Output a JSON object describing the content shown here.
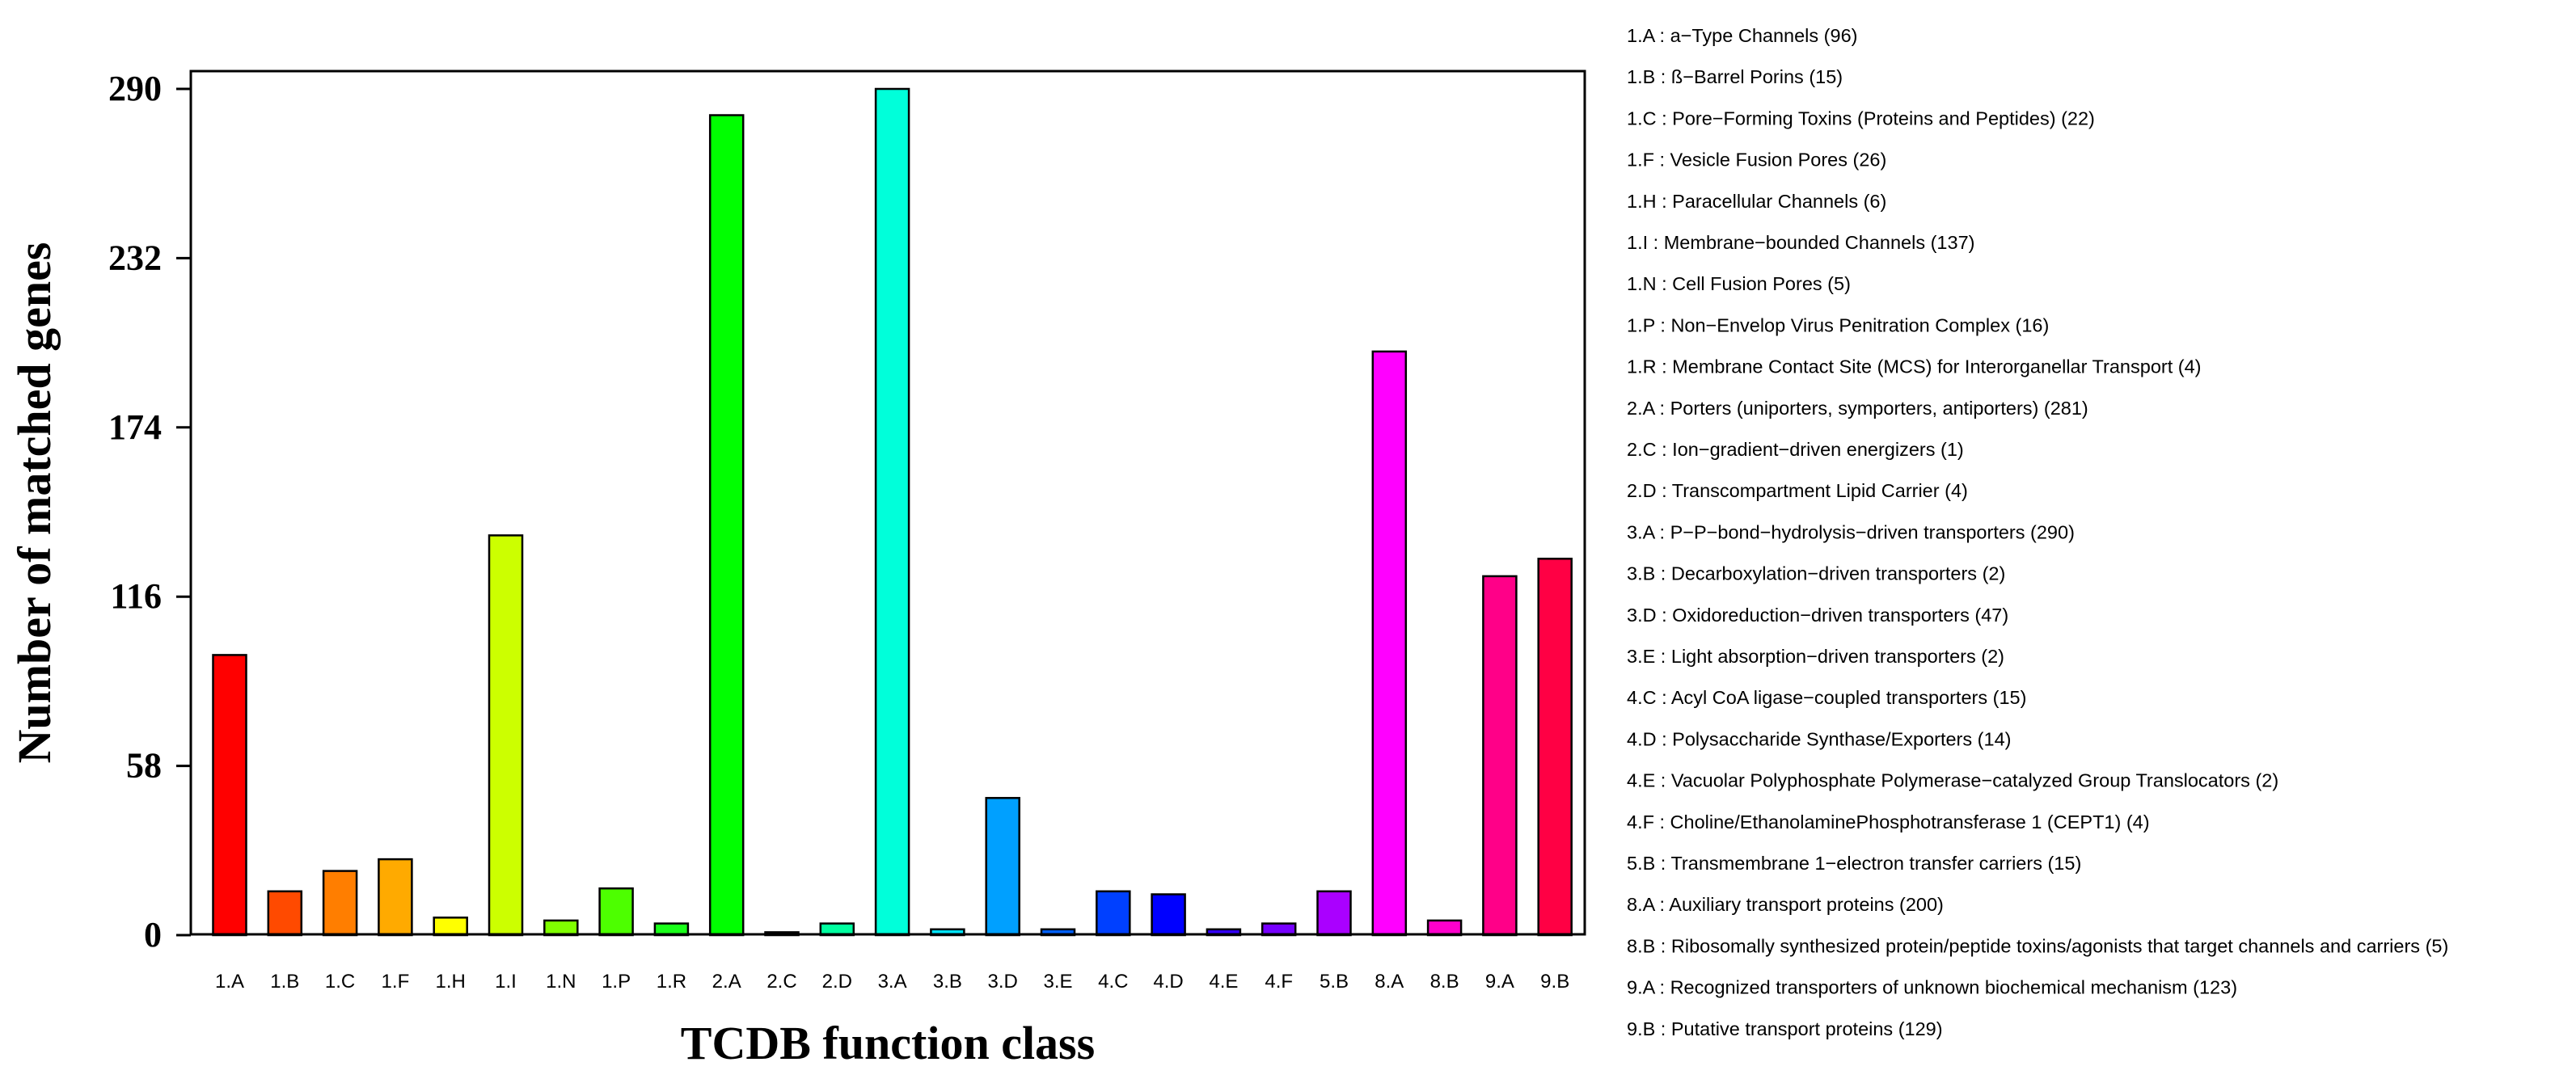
{
  "chart_data": {
    "type": "bar",
    "title": "",
    "xlabel": "TCDB function class",
    "ylabel": "Number of matched genes",
    "ylim": [
      0,
      296
    ],
    "yticks": [
      0,
      58,
      116,
      174,
      232,
      290
    ],
    "grid": false,
    "legend_position": "right",
    "categories": [
      "1.A",
      "1.B",
      "1.C",
      "1.F",
      "1.H",
      "1.I",
      "1.N",
      "1.P",
      "1.R",
      "2.A",
      "2.C",
      "2.D",
      "3.A",
      "3.B",
      "3.D",
      "3.E",
      "4.C",
      "4.D",
      "4.E",
      "4.F",
      "5.B",
      "8.A",
      "8.B",
      "9.A",
      "9.B"
    ],
    "values": [
      96,
      15,
      22,
      26,
      6,
      137,
      5,
      16,
      4,
      281,
      1,
      4,
      290,
      2,
      47,
      2,
      15,
      14,
      2,
      4,
      15,
      200,
      5,
      123,
      129
    ],
    "colors": [
      "#FF0000",
      "#FF4A00",
      "#FF7E00",
      "#FFAA00",
      "#FFFF00",
      "#CCFF00",
      "#80FF00",
      "#4DFF00",
      "#1AFF1A",
      "#00FF00",
      "#00FF80",
      "#00FFA0",
      "#00FFDA",
      "#00E6FF",
      "#00A0FF",
      "#0060FF",
      "#0040FF",
      "#0000FF",
      "#3300FF",
      "#7700FF",
      "#AA00FF",
      "#FF00FF",
      "#FF00CC",
      "#FF0088",
      "#FF0044"
    ],
    "legend": [
      {
        "code": "1.A :",
        "name": "a−Type Channels",
        "count": "(96)"
      },
      {
        "code": "1.B :",
        "name": "ß−Barrel Porins",
        "count": "(15)"
      },
      {
        "code": "1.C :",
        "name": "Pore−Forming Toxins (Proteins and Peptides)",
        "count": "(22)"
      },
      {
        "code": "1.F :",
        "name": "Vesicle Fusion Pores",
        "count": "(26)"
      },
      {
        "code": "1.H :",
        "name": "Paracellular Channels",
        "count": "(6)"
      },
      {
        "code": "1.I :",
        "name": "Membrane−bounded Channels",
        "count": "(137)"
      },
      {
        "code": "1.N :",
        "name": "Cell Fusion Pores",
        "count": "(5)"
      },
      {
        "code": "1.P :",
        "name": "Non−Envelop Virus Penitration Complex",
        "count": "(16)"
      },
      {
        "code": "1.R :",
        "name": "Membrane Contact Site (MCS) for Interorganellar Transport",
        "count": "(4)"
      },
      {
        "code": "2.A :",
        "name": "Porters (uniporters, symporters, antiporters)",
        "count": "(281)"
      },
      {
        "code": "2.C :",
        "name": "Ion−gradient−driven energizers",
        "count": "(1)"
      },
      {
        "code": "2.D :",
        "name": "Transcompartment Lipid Carrier",
        "count": "(4)"
      },
      {
        "code": "3.A :",
        "name": "P−P−bond−hydrolysis−driven transporters",
        "count": "(290)"
      },
      {
        "code": "3.B :",
        "name": "Decarboxylation−driven transporters",
        "count": "(2)"
      },
      {
        "code": "3.D :",
        "name": "Oxidoreduction−driven transporters",
        "count": "(47)"
      },
      {
        "code": "3.E :",
        "name": "Light absorption−driven transporters",
        "count": "(2)"
      },
      {
        "code": "4.C :",
        "name": "Acyl CoA ligase−coupled transporters",
        "count": "(15)"
      },
      {
        "code": "4.D :",
        "name": "Polysaccharide Synthase/Exporters",
        "count": "(14)"
      },
      {
        "code": "4.E :",
        "name": "Vacuolar Polyphosphate Polymerase−catalyzed Group Translocators",
        "count": "(2)"
      },
      {
        "code": "4.F :",
        "name": "Choline/EthanolaminePhosphotransferase 1 (CEPT1)",
        "count": "(4)"
      },
      {
        "code": "5.B :",
        "name": "Transmembrane 1−electron transfer carriers",
        "count": "(15)"
      },
      {
        "code": "8.A :",
        "name": "Auxiliary transport proteins",
        "count": "(200)"
      },
      {
        "code": "8.B :",
        "name": "Ribosomally synthesized protein/peptide toxins/agonists that target channels and carriers",
        "count": "(5)"
      },
      {
        "code": "9.A :",
        "name": "Recognized transporters of unknown biochemical mechanism",
        "count": "(123)"
      },
      {
        "code": "9.B :",
        "name": "Putative transport proteins",
        "count": "(129)"
      }
    ]
  }
}
